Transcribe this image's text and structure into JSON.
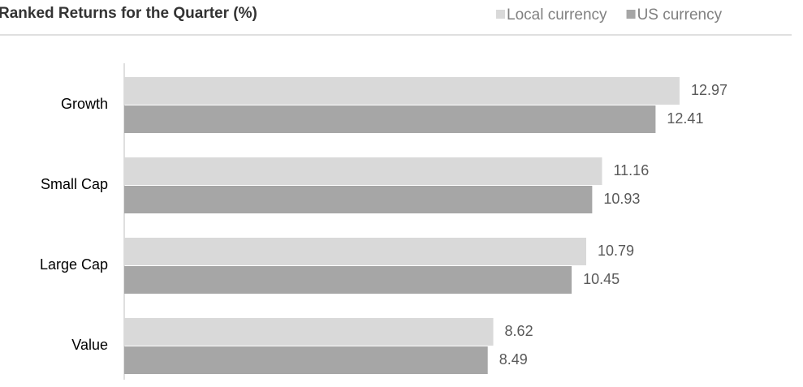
{
  "chart_data": {
    "type": "hbar",
    "title": "Ranked Returns for the Quarter (%)",
    "categories": [
      "Growth",
      "Small Cap",
      "Large Cap",
      "Value"
    ],
    "series": [
      {
        "name": "Local currency",
        "color": "#d9d9d9",
        "values": [
          12.97,
          11.16,
          10.79,
          8.62
        ]
      },
      {
        "name": "US currency",
        "color": "#a6a6a6",
        "values": [
          12.41,
          10.93,
          10.45,
          8.49
        ]
      }
    ],
    "xlim": [
      0,
      15
    ],
    "legend": "top-right"
  }
}
